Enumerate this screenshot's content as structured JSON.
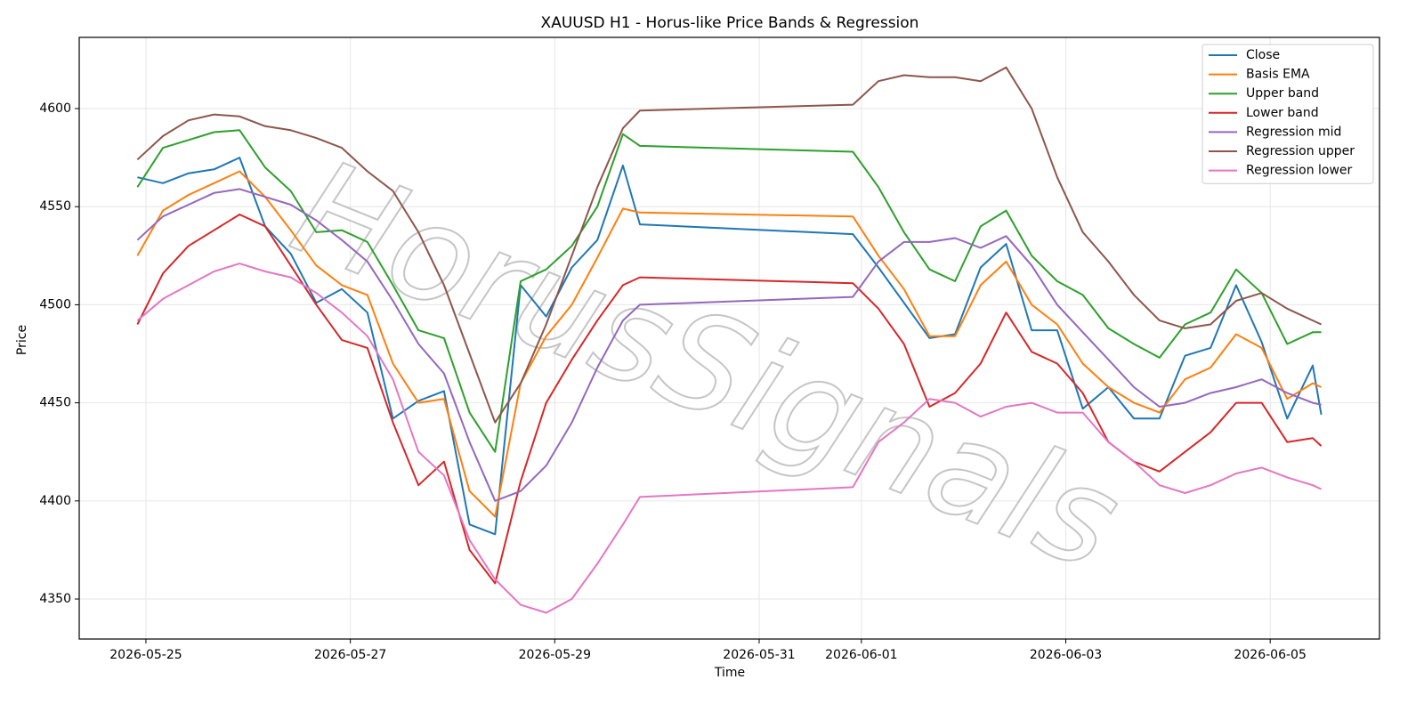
{
  "chart_data": {
    "type": "line",
    "title": "XAUUSD H1 - Horus-like Price Bands & Regression",
    "x_label": "Time",
    "y_label": "Price",
    "watermark": "HorusSignals",
    "x": [
      "2026-05-24 22:00",
      "2026-05-25 04:00",
      "2026-05-25 10:00",
      "2026-05-25 16:00",
      "2026-05-25 22:00",
      "2026-05-26 04:00",
      "2026-05-26 10:00",
      "2026-05-26 16:00",
      "2026-05-26 22:00",
      "2026-05-27 04:00",
      "2026-05-27 10:00",
      "2026-05-27 16:00",
      "2026-05-27 22:00",
      "2026-05-28 04:00",
      "2026-05-28 10:00",
      "2026-05-28 16:00",
      "2026-05-28 22:00",
      "2026-05-29 04:00",
      "2026-05-29 10:00",
      "2026-05-29 16:00",
      "2026-05-29 20:00",
      "2026-05-31 22:00",
      "2026-06-01 04:00",
      "2026-06-01 10:00",
      "2026-06-01 16:00",
      "2026-06-01 22:00",
      "2026-06-02 04:00",
      "2026-06-02 10:00",
      "2026-06-02 16:00",
      "2026-06-02 22:00",
      "2026-06-03 04:00",
      "2026-06-03 10:00",
      "2026-06-03 16:00",
      "2026-06-03 22:00",
      "2026-06-04 04:00",
      "2026-06-04 10:00",
      "2026-06-04 16:00",
      "2026-06-04 22:00",
      "2026-06-05 04:00",
      "2026-06-05 10:00",
      "2026-06-05 12:00"
    ],
    "series": [
      {
        "name": "Close",
        "color": "#1f77b4",
        "values": [
          4565,
          4562,
          4567,
          4569,
          4575,
          4540,
          4526,
          4501,
          4508,
          4496,
          4442,
          4451,
          4456,
          4388,
          4383,
          4510,
          4494,
          4519,
          4533,
          4571,
          4541,
          4536,
          4519,
          4501,
          4483,
          4485,
          4519,
          4531,
          4487,
          4487,
          4447,
          4458,
          4442,
          4442,
          4474,
          4478,
          4510,
          4481,
          4442,
          4469,
          4444
        ]
      },
      {
        "name": "Basis EMA",
        "color": "#ff7f0e",
        "values": [
          4525,
          4548,
          4556,
          4562,
          4568,
          4555,
          4538,
          4520,
          4510,
          4505,
          4470,
          4450,
          4452,
          4405,
          4392,
          4460,
          4484,
          4500,
          4524,
          4549,
          4547,
          4545,
          4525,
          4508,
          4484,
          4484,
          4510,
          4522,
          4500,
          4490,
          4470,
          4458,
          4450,
          4445,
          4462,
          4468,
          4485,
          4478,
          4452,
          4460,
          4458
        ]
      },
      {
        "name": "Upper band",
        "color": "#2ca02c",
        "values": [
          4560,
          4580,
          4584,
          4588,
          4589,
          4570,
          4558,
          4537,
          4538,
          4532,
          4510,
          4487,
          4483,
          4445,
          4425,
          4512,
          4518,
          4530,
          4550,
          4587,
          4581,
          4578,
          4560,
          4537,
          4518,
          4512,
          4540,
          4548,
          4525,
          4512,
          4505,
          4488,
          4480,
          4473,
          4490,
          4496,
          4518,
          4506,
          4480,
          4486,
          4486
        ]
      },
      {
        "name": "Lower band",
        "color": "#d62728",
        "values": [
          4490,
          4516,
          4530,
          4538,
          4546,
          4540,
          4520,
          4500,
          4482,
          4478,
          4440,
          4408,
          4420,
          4375,
          4358,
          4410,
          4450,
          4472,
          4492,
          4510,
          4514,
          4511,
          4498,
          4480,
          4448,
          4455,
          4470,
          4496,
          4476,
          4470,
          4455,
          4430,
          4420,
          4415,
          4425,
          4435,
          4450,
          4450,
          4430,
          4432,
          4428
        ]
      },
      {
        "name": "Regression mid",
        "color": "#9467bd",
        "values": [
          4533,
          4545,
          4551,
          4557,
          4559,
          4555,
          4551,
          4543,
          4533,
          4522,
          4502,
          4480,
          4465,
          4430,
          4400,
          4405,
          4418,
          4440,
          4468,
          4492,
          4500,
          4504,
          4522,
          4532,
          4532,
          4534,
          4529,
          4535,
          4520,
          4500,
          4486,
          4472,
          4458,
          4448,
          4450,
          4455,
          4458,
          4462,
          4455,
          4450,
          4449
        ]
      },
      {
        "name": "Regression upper",
        "color": "#8c564b",
        "values": [
          4574,
          4586,
          4594,
          4597,
          4596,
          4591,
          4589,
          4585,
          4580,
          4568,
          4558,
          4537,
          4510,
          4475,
          4440,
          4460,
          4490,
          4525,
          4560,
          4590,
          4599,
          4602,
          4614,
          4617,
          4616,
          4616,
          4614,
          4621,
          4600,
          4565,
          4537,
          4522,
          4505,
          4492,
          4488,
          4490,
          4502,
          4506,
          4498,
          4492,
          4490
        ]
      },
      {
        "name": "Regression lower",
        "color": "#e377c2",
        "values": [
          4492,
          4503,
          4510,
          4517,
          4521,
          4517,
          4514,
          4506,
          4496,
          4484,
          4462,
          4425,
          4413,
          4380,
          4360,
          4347,
          4343,
          4350,
          4368,
          4388,
          4402,
          4407,
          4430,
          4440,
          4452,
          4450,
          4443,
          4448,
          4450,
          4445,
          4445,
          4430,
          4420,
          4408,
          4404,
          4408,
          4414,
          4417,
          4412,
          4408,
          4406
        ]
      }
    ],
    "xlim": [
      "2026-05-24 08:20",
      "2026-06-06 01:40"
    ],
    "xticks": [
      "2026-05-25",
      "2026-05-27",
      "2026-05-29",
      "2026-05-31",
      "2026-06-01",
      "2026-06-03",
      "2026-06-05"
    ],
    "ylim": [
      4329.6,
      4636.3
    ],
    "yticks": [
      4350,
      4400,
      4450,
      4500,
      4550,
      4600
    ],
    "grid": true,
    "legend": "upper right"
  }
}
